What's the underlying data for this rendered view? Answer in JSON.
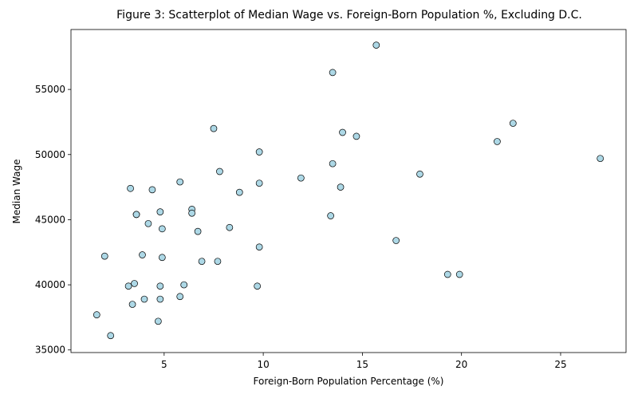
{
  "chart_data": {
    "type": "scatter",
    "title": "Figure 3: Scatterplot of Median Wage vs. Foreign-Born Population %, Excluding D.C.",
    "xlabel": "Foreign-Born Population Percentage (%)",
    "ylabel": "Median Wage",
    "xlim": [
      0.3,
      28.3
    ],
    "ylim": [
      34800,
      59600
    ],
    "xticks": [
      5,
      10,
      15,
      20,
      25
    ],
    "yticks": [
      35000,
      40000,
      45000,
      50000,
      55000
    ],
    "grid": false,
    "legend": "none",
    "marker_fill": "#add8e6",
    "marker_edge": "#000000",
    "points": [
      [
        15.7,
        58400
      ],
      [
        13.5,
        56300
      ],
      [
        7.5,
        52000
      ],
      [
        14.0,
        51700
      ],
      [
        14.7,
        51400
      ],
      [
        22.6,
        52400
      ],
      [
        21.8,
        51000
      ],
      [
        27.0,
        49700
      ],
      [
        9.8,
        50200
      ],
      [
        13.5,
        49300
      ],
      [
        17.9,
        48500
      ],
      [
        7.8,
        48700
      ],
      [
        11.9,
        48200
      ],
      [
        5.8,
        47900
      ],
      [
        9.8,
        47800
      ],
      [
        3.3,
        47400
      ],
      [
        4.4,
        47300
      ],
      [
        8.8,
        47100
      ],
      [
        13.9,
        47500
      ],
      [
        6.4,
        45800
      ],
      [
        6.4,
        45500
      ],
      [
        4.8,
        45600
      ],
      [
        3.6,
        45400
      ],
      [
        3.6,
        45400
      ],
      [
        13.4,
        45300
      ],
      [
        4.2,
        44700
      ],
      [
        4.9,
        44300
      ],
      [
        8.3,
        44400
      ],
      [
        6.7,
        44100
      ],
      [
        16.7,
        43400
      ],
      [
        9.8,
        42900
      ],
      [
        2.0,
        42200
      ],
      [
        3.9,
        42300
      ],
      [
        4.9,
        42100
      ],
      [
        6.9,
        41800
      ],
      [
        7.7,
        41800
      ],
      [
        19.3,
        40800
      ],
      [
        19.9,
        40800
      ],
      [
        3.5,
        40100
      ],
      [
        3.2,
        39900
      ],
      [
        4.8,
        39900
      ],
      [
        6.0,
        40000
      ],
      [
        9.7,
        39900
      ],
      [
        4.0,
        38900
      ],
      [
        4.8,
        38900
      ],
      [
        5.8,
        39100
      ],
      [
        3.4,
        38500
      ],
      [
        1.6,
        37700
      ],
      [
        4.7,
        37200
      ],
      [
        2.3,
        36100
      ]
    ]
  }
}
